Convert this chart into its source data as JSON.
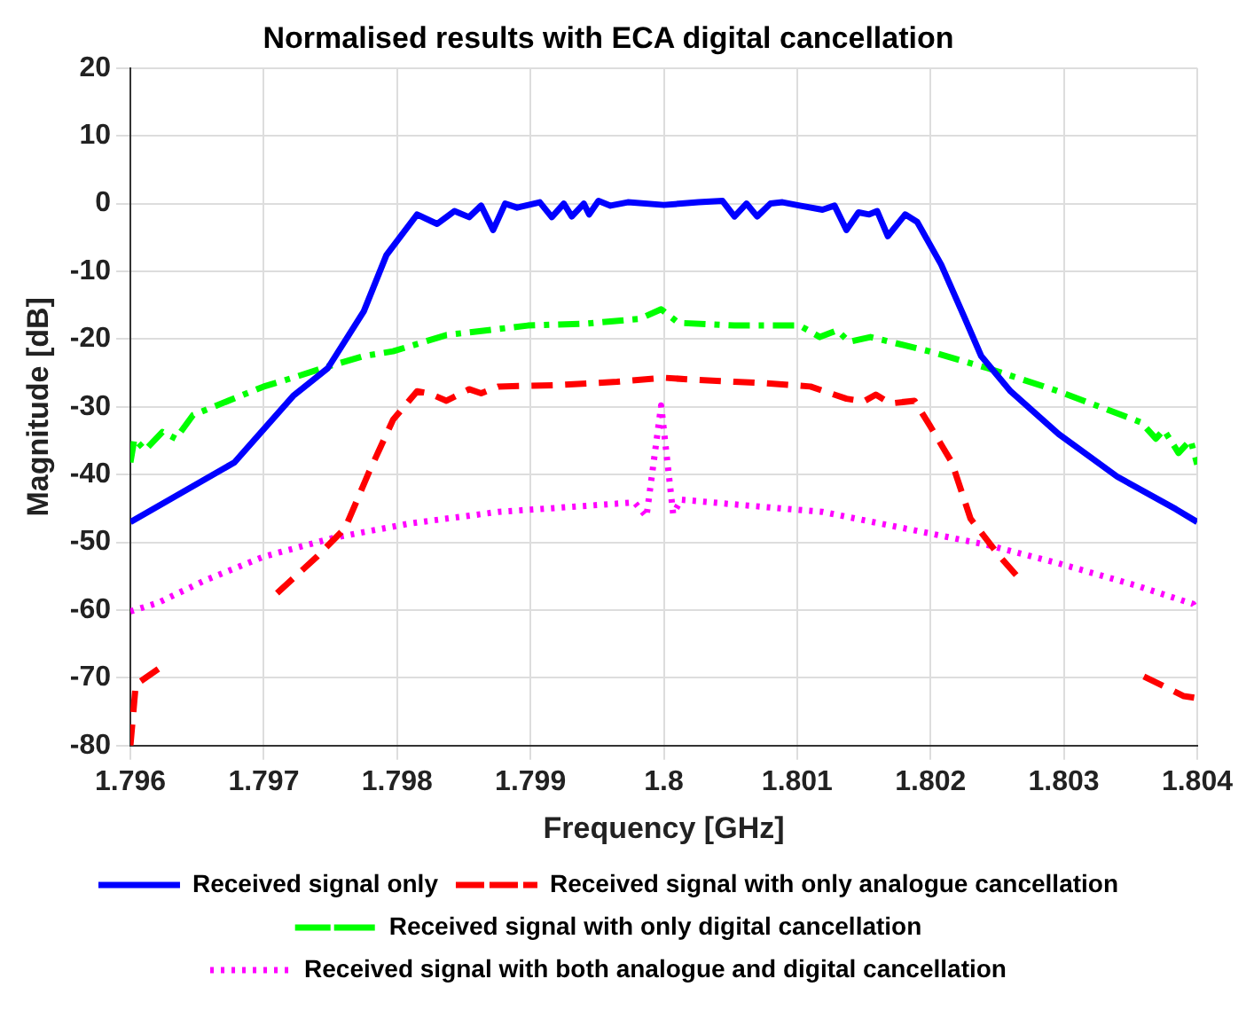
{
  "chart_data": {
    "type": "line",
    "title": "Normalised results with ECA digital cancellation",
    "xlabel": "Frequency [GHz]",
    "ylabel": "Magnitude [dB]",
    "xlim": [
      1.796,
      1.804
    ],
    "xticks": [
      1.796,
      1.797,
      1.798,
      1.799,
      1.8,
      1.801,
      1.802,
      1.803,
      1.804
    ],
    "ylim": [
      -80,
      20
    ],
    "yticks": [
      -80,
      -70,
      -60,
      -50,
      -40,
      -30,
      -20,
      -10,
      0,
      10,
      20
    ],
    "grid": true,
    "legend": "bottom",
    "marker": "none",
    "series": [
      {
        "name": "Received signal only",
        "color": "#0000ff",
        "line_style": "solid",
        "x": [
          1.796,
          1.79678,
          1.79722,
          1.79748,
          1.79775,
          1.79792,
          1.79815,
          1.7983,
          1.79843,
          1.79854,
          1.79863,
          1.79872,
          1.79881,
          1.7989,
          1.79907,
          1.79916,
          1.79925,
          1.79931,
          1.7994,
          1.79944,
          1.79951,
          1.7996,
          1.79973,
          1.8,
          1.80026,
          1.80044,
          1.80053,
          1.80062,
          1.8007,
          1.8008,
          1.80089,
          1.80102,
          1.80119,
          1.80128,
          1.80137,
          1.80146,
          1.80154,
          1.8016,
          1.80168,
          1.80181,
          1.8019,
          1.80208,
          1.80225,
          1.80238,
          1.8026,
          1.80296,
          1.8034,
          1.80384,
          1.804
        ],
        "values": [
          -47,
          -38.2,
          -28.4,
          -24.3,
          -15.9,
          -7.6,
          -1.6,
          -3,
          -1.1,
          -2,
          -0.3,
          -3.9,
          0,
          -0.6,
          0.2,
          -2,
          0,
          -1.9,
          0,
          -1.6,
          0.4,
          -0.3,
          0.2,
          -0.2,
          0.2,
          0.4,
          -1.9,
          0,
          -1.9,
          0,
          0.2,
          -0.3,
          -0.9,
          -0.3,
          -3.9,
          -1.3,
          -1.6,
          -1.1,
          -4.8,
          -1.6,
          -2.7,
          -9,
          -16.6,
          -22.5,
          -27.7,
          -34,
          -40.3,
          -45.1,
          -47
        ]
      },
      {
        "name": "Received signal with only analogue cancellation",
        "color": "#ff0000",
        "line_style": "dashed",
        "x": [
          1.796,
          1.79604,
          1.79626,
          1.7966,
          1.7971,
          1.7974,
          1.79761,
          1.79779,
          1.79797,
          1.79815,
          1.79824,
          1.79837,
          1.79854,
          1.79863,
          1.79876,
          1.7992,
          1.79965,
          1.8,
          1.80022,
          1.80053,
          1.80075,
          1.8011,
          1.80137,
          1.8015,
          1.80159,
          1.8017,
          1.80188,
          1.80199,
          1.80216,
          1.8023,
          1.80252,
          1.80269,
          1.8028,
          1.8036,
          1.8039,
          1.804
        ],
        "values": [
          -80,
          -71,
          -68,
          null,
          -57.5,
          -52.1,
          -47.9,
          -39.6,
          -31.9,
          -27.7,
          -28,
          -29.1,
          -27.4,
          -28,
          -27,
          -26.8,
          -26.3,
          -25.7,
          -26,
          -26.3,
          -26.5,
          -27,
          -28.8,
          -29.2,
          -28.2,
          -29.5,
          -29.1,
          -32.6,
          -38.2,
          -46.5,
          -52.1,
          -55.9,
          null,
          -69.8,
          -72.7,
          -73
        ]
      },
      {
        "name": "Received signal with only digital cancellation",
        "color": "#00ff00",
        "line_style": "dashdot",
        "x": [
          1.796,
          1.79603,
          1.79611,
          1.79624,
          1.79634,
          1.79647,
          1.797,
          1.79722,
          1.79744,
          1.79775,
          1.79797,
          1.79837,
          1.79898,
          1.79943,
          1.79982,
          1.79998,
          1.80011,
          1.80053,
          1.80102,
          1.80117,
          1.8013,
          1.80139,
          1.80155,
          1.80199,
          1.80243,
          1.80296,
          1.80358,
          1.80369,
          1.80375,
          1.80386,
          1.80395,
          1.804
        ],
        "values": [
          -38.2,
          -34.7,
          -36.4,
          -33.7,
          -34.7,
          -31.2,
          -27,
          -25.7,
          -24.3,
          -22.5,
          -21.8,
          -19.4,
          -18,
          -17.7,
          -17,
          -15.6,
          -17.6,
          -18,
          -18,
          -19.7,
          -18.7,
          -20.4,
          -19.7,
          -21.8,
          -24.3,
          -27.7,
          -32.3,
          -34.7,
          -33.4,
          -36.8,
          -34.9,
          -38.5
        ]
      },
      {
        "name": "Received signal with both analogue and digital cancellation",
        "color": "#ff00ff",
        "line_style": "dotted",
        "x": [
          1.796,
          1.79621,
          1.79656,
          1.797,
          1.79753,
          1.7981,
          1.79876,
          1.79943,
          1.79978,
          1.79987,
          1.79998,
          1.80007,
          1.80013,
          1.80053,
          1.80119,
          1.80172,
          1.80243,
          1.80296,
          1.80353,
          1.80397,
          1.804
        ],
        "values": [
          -60.2,
          -58.9,
          -55.6,
          -52.1,
          -49.3,
          -47.2,
          -45.5,
          -44.6,
          -44.1,
          -46.2,
          -29.8,
          -45.8,
          -43.7,
          -44.4,
          -45.5,
          -47.6,
          -50.4,
          -53.1,
          -56.3,
          -59.1,
          -60.2
        ]
      }
    ]
  }
}
